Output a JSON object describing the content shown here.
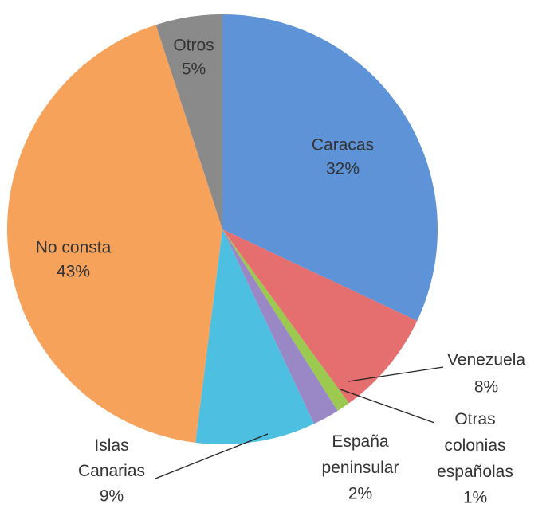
{
  "chart_data": {
    "type": "pie",
    "categories": [
      "Caracas",
      "Venezuela",
      "Otras colonias españolas",
      "España peninsular",
      "Islas Canarias",
      "No consta",
      "Otros"
    ],
    "values": [
      32,
      8,
      1,
      2,
      9,
      43,
      5
    ],
    "value_labels": [
      "32%",
      "8%",
      "1%",
      "2%",
      "9%",
      "43%",
      "5%"
    ],
    "colors": [
      "#5f93d8",
      "#e56f6f",
      "#9cc94f",
      "#9a88c6",
      "#4dbfe0",
      "#f7a25a",
      "#8a8a8a"
    ]
  }
}
